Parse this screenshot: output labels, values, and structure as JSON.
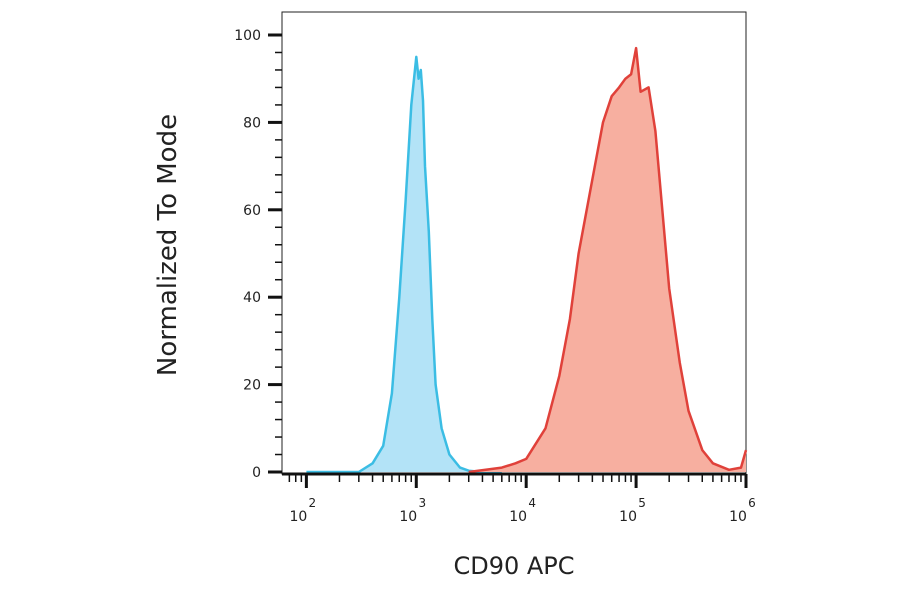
{
  "chart_data": {
    "type": "area",
    "xlabel": "CD90 APC",
    "ylabel": "Normalized To Mode",
    "x_scale": "log",
    "xlim": [
      60,
      1000000
    ],
    "ylim": [
      0,
      105
    ],
    "y_ticks": [
      "0",
      "20",
      "40",
      "60",
      "80",
      "100"
    ],
    "x_ticks": [
      {
        "base": "10",
        "exp": "2"
      },
      {
        "base": "10",
        "exp": "3"
      },
      {
        "base": "10",
        "exp": "4"
      },
      {
        "base": "10",
        "exp": "5"
      },
      {
        "base": "10",
        "exp": "6"
      }
    ],
    "grid": false,
    "legend": "none",
    "series": [
      {
        "color": "#3bbde4",
        "fill": "#b3e3f7",
        "x": [
          100,
          300,
          400,
          500,
          600,
          700,
          800,
          900,
          1000,
          1050,
          1100,
          1150,
          1200,
          1300,
          1400,
          1500,
          1700,
          2000,
          2500,
          3000,
          4000,
          6000
        ],
        "y": [
          0,
          0,
          2,
          6,
          18,
          40,
          62,
          84,
          95,
          90,
          92,
          85,
          70,
          55,
          35,
          20,
          10,
          4,
          1,
          0.3,
          0,
          0
        ]
      },
      {
        "color": "#e0413a",
        "fill": "#f7afa0",
        "x": [
          3000,
          6000,
          8000,
          10000,
          15000,
          20000,
          25000,
          30000,
          40000,
          50000,
          60000,
          70000,
          80000,
          90000,
          100000,
          110000,
          130000,
          150000,
          200000,
          250000,
          300000,
          400000,
          500000,
          700000,
          900000,
          1000000
        ],
        "y": [
          0,
          1,
          2,
          3,
          10,
          22,
          35,
          50,
          67,
          80,
          86,
          88,
          90,
          91,
          97,
          87,
          88,
          78,
          42,
          25,
          14,
          5,
          2,
          0.5,
          1,
          5
        ]
      }
    ]
  }
}
